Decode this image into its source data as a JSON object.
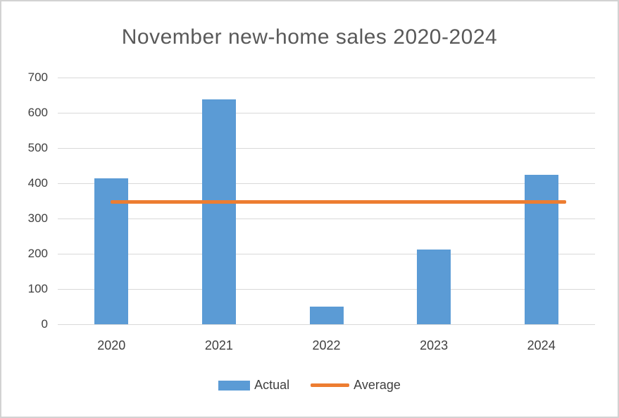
{
  "title": "November new-home sales 2020-2024",
  "colors": {
    "bar": "#5b9bd5",
    "average_line": "#ed7d31",
    "grid": "#d9d9d9",
    "title_text": "#595959",
    "axis_text": "#404040"
  },
  "legend": {
    "items": [
      {
        "label": "Actual",
        "swatch": "bar"
      },
      {
        "label": "Average",
        "swatch": "line"
      }
    ]
  },
  "chart_data": {
    "type": "bar",
    "title": "November new-home sales 2020-2024",
    "categories": [
      "2020",
      "2021",
      "2022",
      "2023",
      "2024"
    ],
    "series": [
      {
        "name": "Actual",
        "type": "bar",
        "values": [
          415,
          638,
          50,
          213,
          424
        ]
      },
      {
        "name": "Average",
        "type": "line",
        "values": [
          348,
          348,
          348,
          348,
          348
        ]
      }
    ],
    "xlabel": "",
    "ylabel": "",
    "ylim": [
      0,
      700
    ],
    "ytick_step": 100,
    "yticks": [
      0,
      100,
      200,
      300,
      400,
      500,
      600,
      700
    ],
    "grid": true,
    "legend_position": "bottom"
  }
}
